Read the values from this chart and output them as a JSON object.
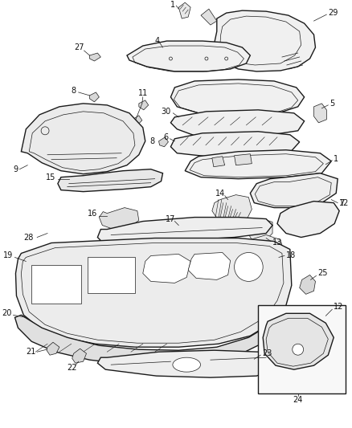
{
  "bg_color": "#ffffff",
  "line_color": "#1a1a1a",
  "lw_main": 1.0,
  "lw_thin": 0.5,
  "fig_width": 4.38,
  "fig_height": 5.33,
  "dpi": 100
}
